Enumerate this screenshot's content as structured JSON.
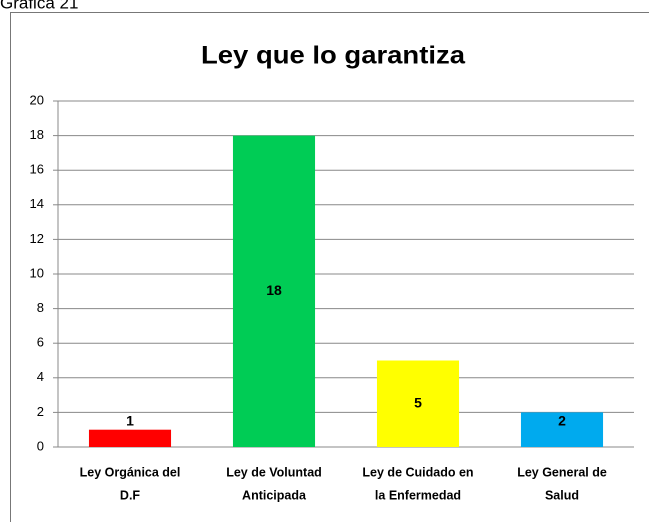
{
  "caption": "Gráfica 21",
  "chart_data": {
    "type": "bar",
    "title": "Ley que lo garantiza",
    "categories": [
      [
        "Ley Orgánica del",
        "D.F"
      ],
      [
        "Ley de Voluntad",
        "Anticipada"
      ],
      [
        "Ley de Cuidado en",
        "la Enfermedad"
      ],
      [
        "Ley General de",
        "Salud"
      ]
    ],
    "values": [
      1,
      18,
      5,
      2
    ],
    "colors": [
      "#ff0000",
      "#00cc55",
      "#ffff00",
      "#00aaee"
    ],
    "ylim": [
      0,
      20
    ],
    "yticks": [
      0,
      2,
      4,
      6,
      8,
      10,
      12,
      14,
      16,
      18,
      20
    ],
    "grid": true
  }
}
